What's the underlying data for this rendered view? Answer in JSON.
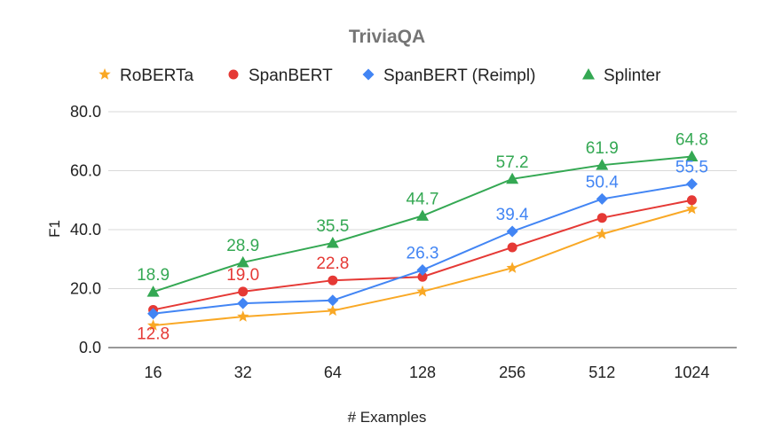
{
  "chart_data": {
    "type": "line",
    "title": "TriviaQA",
    "xlabel": "# Examples",
    "ylabel": "F1",
    "categories": [
      "16",
      "32",
      "64",
      "128",
      "256",
      "512",
      "1024"
    ],
    "ylim": [
      0,
      80
    ],
    "yticks": [
      "0.0",
      "20.0",
      "40.0",
      "60.0",
      "80.0"
    ],
    "grid": true,
    "legend_position": "top",
    "series": [
      {
        "name": "RoBERTa",
        "color": "#f9a825",
        "marker": "star",
        "values": [
          7.5,
          10.5,
          12.5,
          19.0,
          27.0,
          38.5,
          47.0
        ],
        "labels": [
          null,
          null,
          null,
          null,
          null,
          null,
          null
        ]
      },
      {
        "name": "SpanBERT",
        "color": "#e53935",
        "marker": "circle",
        "values": [
          12.8,
          19.0,
          22.8,
          24.0,
          34.0,
          44.0,
          50.0
        ],
        "labels": [
          "12.8",
          "19.0",
          "22.8",
          null,
          null,
          null,
          null
        ]
      },
      {
        "name": "SpanBERT (Reimpl)",
        "color": "#4285f4",
        "marker": "diamond",
        "values": [
          11.5,
          15.0,
          16.0,
          26.3,
          39.4,
          50.4,
          55.5
        ],
        "labels": [
          null,
          null,
          null,
          "26.3",
          "39.4",
          "50.4",
          "55.5"
        ]
      },
      {
        "name": "Splinter",
        "color": "#34a853",
        "marker": "triangle",
        "values": [
          18.9,
          28.9,
          35.5,
          44.7,
          57.2,
          61.9,
          64.8
        ],
        "labels": [
          "18.9",
          "28.9",
          "35.5",
          "44.7",
          "57.2",
          "61.9",
          "64.8"
        ]
      }
    ]
  }
}
